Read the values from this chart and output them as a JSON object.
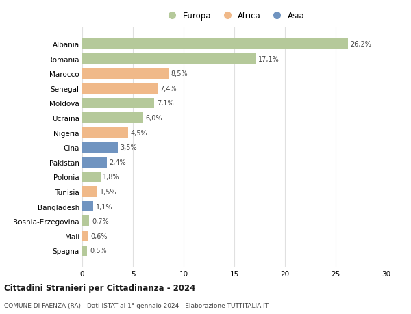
{
  "categories": [
    "Spagna",
    "Mali",
    "Bosnia-Erzegovina",
    "Bangladesh",
    "Tunisia",
    "Polonia",
    "Pakistan",
    "Cina",
    "Nigeria",
    "Ucraina",
    "Moldova",
    "Senegal",
    "Marocco",
    "Romania",
    "Albania"
  ],
  "values": [
    0.5,
    0.6,
    0.7,
    1.1,
    1.5,
    1.8,
    2.4,
    3.5,
    4.5,
    6.0,
    7.1,
    7.4,
    8.5,
    17.1,
    26.2
  ],
  "labels": [
    "0,5%",
    "0,6%",
    "0,7%",
    "1,1%",
    "1,5%",
    "1,8%",
    "2,4%",
    "3,5%",
    "4,5%",
    "6,0%",
    "7,1%",
    "7,4%",
    "8,5%",
    "17,1%",
    "26,2%"
  ],
  "continents": [
    "Europa",
    "Africa",
    "Europa",
    "Asia",
    "Africa",
    "Europa",
    "Asia",
    "Asia",
    "Africa",
    "Europa",
    "Europa",
    "Africa",
    "Africa",
    "Europa",
    "Europa"
  ],
  "colors": {
    "Europa": "#b5c99a",
    "Africa": "#f0b989",
    "Asia": "#7094c0"
  },
  "xlim": [
    0,
    30
  ],
  "xticks": [
    0,
    5,
    10,
    15,
    20,
    25,
    30
  ],
  "title": "Cittadini Stranieri per Cittadinanza - 2024",
  "subtitle": "COMUNE DI FAENZA (RA) - Dati ISTAT al 1° gennaio 2024 - Elaborazione TUTTITALIA.IT",
  "background_color": "#ffffff",
  "grid_color": "#e0e0e0",
  "bar_height": 0.72
}
